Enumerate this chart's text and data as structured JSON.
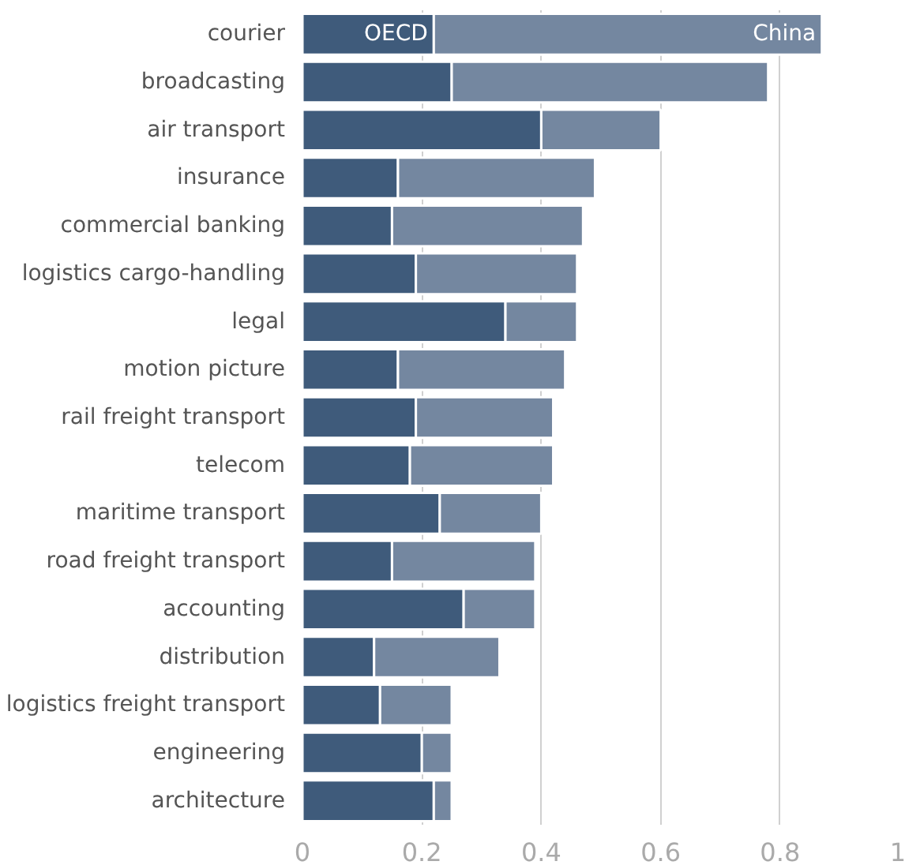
{
  "chart_data": {
    "type": "bar",
    "orientation": "horizontal",
    "stacked": true,
    "categories": [
      "courier",
      "broadcasting",
      "air transport",
      "insurance",
      "commercial banking",
      "logistics cargo-handling",
      "legal",
      "motion picture",
      "rail freight transport",
      "telecom",
      "maritime transport",
      "road freight transport",
      "accounting",
      "distribution",
      "logistics freight transport",
      "engineering",
      "architecture"
    ],
    "series": [
      {
        "name": "OECD",
        "color": "#3f5b7b",
        "values": [
          0.22,
          0.25,
          0.4,
          0.16,
          0.15,
          0.19,
          0.34,
          0.16,
          0.19,
          0.18,
          0.23,
          0.15,
          0.27,
          0.12,
          0.13,
          0.2,
          0.22
        ]
      },
      {
        "name": "China",
        "color": "#7487a0",
        "values": [
          0.65,
          0.53,
          0.2,
          0.33,
          0.32,
          0.27,
          0.12,
          0.28,
          0.23,
          0.24,
          0.17,
          0.24,
          0.12,
          0.21,
          0.12,
          0.05,
          0.03
        ]
      }
    ],
    "xlim": [
      0,
      1
    ],
    "xticks": [
      0,
      0.2,
      0.4,
      0.6,
      0.8,
      1
    ],
    "grid": "x"
  }
}
